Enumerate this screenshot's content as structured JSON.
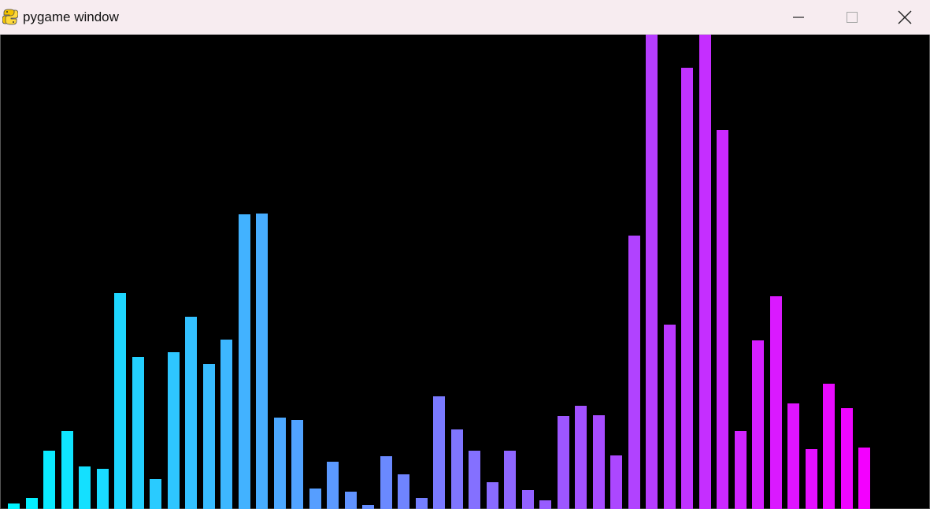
{
  "window": {
    "title": "pygame window",
    "app_icon": "pygame-snake-icon",
    "controls": {
      "minimize_icon": "minimize-icon",
      "maximize_icon": "maximize-icon",
      "close_icon": "close-icon"
    },
    "titlebar_color": "#f7ecf0",
    "canvas_background": "#000000"
  },
  "visualizer": {
    "start_color": "#00f4ff",
    "end_color": "#f300ff",
    "max_level": 600,
    "levels": [
      7,
      14,
      74,
      99,
      54,
      51,
      273,
      192,
      38,
      198,
      243,
      183,
      214,
      373,
      374,
      116,
      113,
      26,
      60,
      22,
      5,
      67,
      44,
      14,
      143,
      101,
      74,
      34,
      74,
      24,
      11,
      118,
      131,
      119,
      68,
      346,
      600,
      233,
      558,
      600,
      479,
      99,
      213,
      269,
      134,
      76,
      158,
      128,
      78
    ]
  }
}
